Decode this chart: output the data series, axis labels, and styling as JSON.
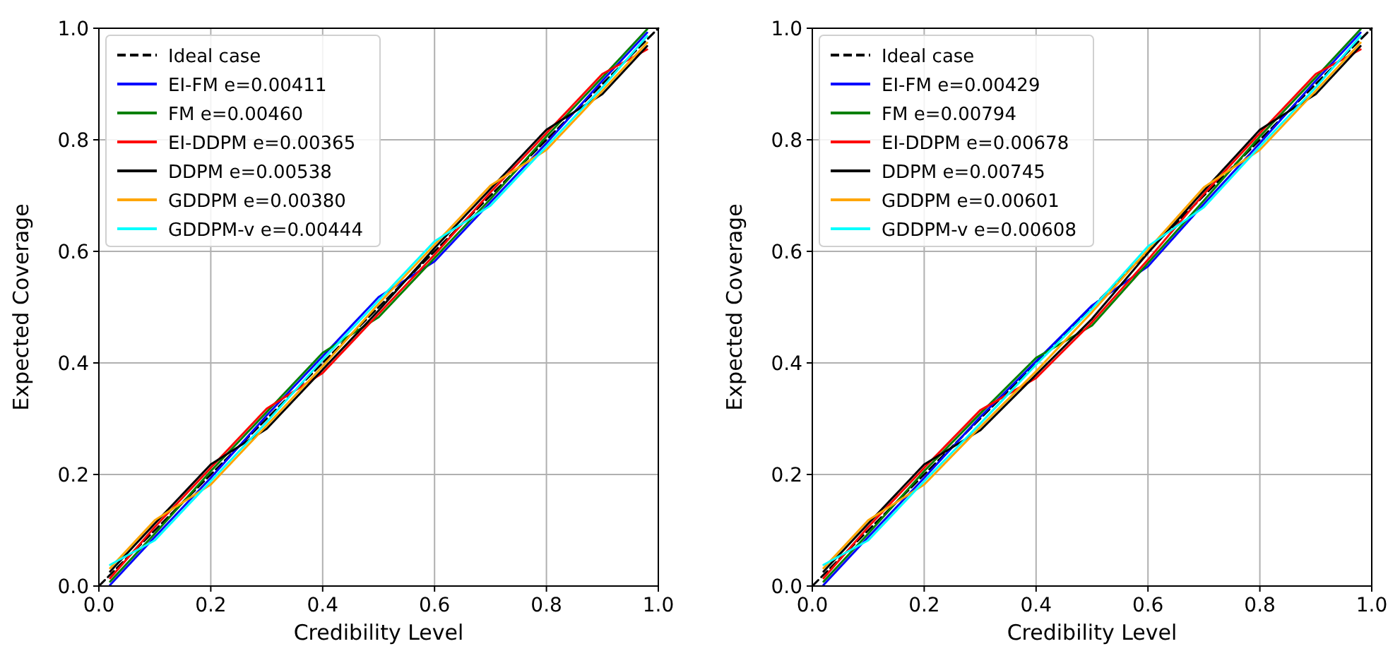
{
  "chart_data": [
    {
      "type": "line",
      "xlabel": "Credibility Level",
      "ylabel": "Expected Coverage",
      "xlim": [
        0,
        1
      ],
      "ylim": [
        0,
        1
      ],
      "xticks": [
        {
          "value": 0,
          "label": "0.0"
        },
        {
          "value": 0.2,
          "label": "0.2"
        },
        {
          "value": 0.4,
          "label": "0.4"
        },
        {
          "value": 0.6,
          "label": "0.6"
        },
        {
          "value": 0.8,
          "label": "0.8"
        },
        {
          "value": 1,
          "label": "1.0"
        }
      ],
      "yticks": [
        {
          "value": 0,
          "label": "0.0"
        },
        {
          "value": 0.2,
          "label": "0.2"
        },
        {
          "value": 0.4,
          "label": "0.4"
        },
        {
          "value": 0.6,
          "label": "0.6"
        },
        {
          "value": 0.8,
          "label": "0.8"
        },
        {
          "value": 1,
          "label": "1.0"
        }
      ],
      "grid": true,
      "legend": "top left",
      "x": [
        0,
        0.1,
        0.2,
        0.3,
        0.4,
        0.5,
        0.6,
        0.7,
        0.8,
        0.9,
        1
      ],
      "series": [
        {
          "name": "Ideal case",
          "color": "#000000",
          "line_style": "dashed",
          "values": [
            0,
            0.1,
            0.2,
            0.3,
            0.4,
            0.5,
            0.6,
            0.7,
            0.8,
            0.9,
            1
          ]
        },
        {
          "name": "EI-FM e=0.00411",
          "color": "#0000ff",
          "x": [
            0.02,
            0.1,
            0.2,
            0.3,
            0.4,
            0.5,
            0.6,
            0.7,
            0.8,
            0.9,
            0.98
          ],
          "values": [
            0.002,
            0.088,
            0.194,
            0.306,
            0.412,
            0.518,
            0.582,
            0.688,
            0.794,
            0.906,
            0.992
          ]
        },
        {
          "name": "FM e=0.00460",
          "color": "#008000",
          "x": [
            0.02,
            0.1,
            0.2,
            0.3,
            0.4,
            0.5,
            0.6,
            0.7,
            0.8,
            0.9,
            0.98
          ],
          "values": [
            0.008,
            0.094,
            0.206,
            0.312,
            0.418,
            0.482,
            0.588,
            0.694,
            0.806,
            0.912,
            0.998
          ]
        },
        {
          "name": "EI-DDPM e=0.00365",
          "color": "#ff0000",
          "x": [
            0.02,
            0.1,
            0.2,
            0.3,
            0.4,
            0.5,
            0.6,
            0.7,
            0.8,
            0.9,
            0.98
          ],
          "values": [
            0.014,
            0.106,
            0.212,
            0.318,
            0.382,
            0.488,
            0.594,
            0.706,
            0.812,
            0.918,
            0.962
          ]
        },
        {
          "name": "DDPM e=0.00538",
          "color": "#000000",
          "x": [
            0.02,
            0.1,
            0.2,
            0.3,
            0.4,
            0.5,
            0.6,
            0.7,
            0.8,
            0.9,
            0.98
          ],
          "values": [
            0.026,
            0.112,
            0.218,
            0.282,
            0.388,
            0.494,
            0.606,
            0.712,
            0.818,
            0.882,
            0.968
          ]
        },
        {
          "name": "GDDPM e=0.00380",
          "color": "#ffa500",
          "x": [
            0.02,
            0.1,
            0.2,
            0.3,
            0.4,
            0.5,
            0.6,
            0.7,
            0.8,
            0.9,
            0.98
          ],
          "values": [
            0.032,
            0.118,
            0.182,
            0.288,
            0.394,
            0.506,
            0.612,
            0.718,
            0.782,
            0.888,
            0.974
          ]
        },
        {
          "name": "GDDPM-v e=0.00444",
          "color": "#00ffff",
          "x": [
            0.02,
            0.1,
            0.2,
            0.3,
            0.4,
            0.5,
            0.6,
            0.7,
            0.8,
            0.9,
            0.98
          ],
          "values": [
            0.038,
            0.082,
            0.188,
            0.294,
            0.406,
            0.512,
            0.618,
            0.682,
            0.788,
            0.894,
            0.986
          ]
        }
      ]
    },
    {
      "type": "line",
      "xlabel": "Credibility Level",
      "ylabel": "Expected Coverage",
      "xlim": [
        0,
        1
      ],
      "ylim": [
        0,
        1
      ],
      "xticks": [
        {
          "value": 0,
          "label": "0.0"
        },
        {
          "value": 0.2,
          "label": "0.2"
        },
        {
          "value": 0.4,
          "label": "0.4"
        },
        {
          "value": 0.6,
          "label": "0.6"
        },
        {
          "value": 0.8,
          "label": "0.8"
        },
        {
          "value": 1,
          "label": "1.0"
        }
      ],
      "yticks": [
        {
          "value": 0,
          "label": "0.0"
        },
        {
          "value": 0.2,
          "label": "0.2"
        },
        {
          "value": 0.4,
          "label": "0.4"
        },
        {
          "value": 0.6,
          "label": "0.6"
        },
        {
          "value": 0.8,
          "label": "0.8"
        },
        {
          "value": 1,
          "label": "1.0"
        }
      ],
      "grid": true,
      "legend": "top left",
      "x": [
        0,
        0.1,
        0.2,
        0.3,
        0.4,
        0.5,
        0.6,
        0.7,
        0.8,
        0.9,
        1
      ],
      "series": [
        {
          "name": "Ideal case",
          "color": "#000000",
          "line_style": "dashed",
          "values": [
            0,
            0.1,
            0.2,
            0.3,
            0.4,
            0.5,
            0.6,
            0.7,
            0.8,
            0.9,
            1
          ]
        },
        {
          "name": "EI-FM e=0.00429",
          "color": "#0000ff",
          "x": [
            0.02,
            0.1,
            0.2,
            0.3,
            0.4,
            0.5,
            0.6,
            0.7,
            0.8,
            0.9,
            0.98
          ],
          "values": [
            0.002,
            0.088,
            0.194,
            0.303,
            0.403,
            0.503,
            0.573,
            0.685,
            0.794,
            0.906,
            0.992
          ]
        },
        {
          "name": "FM e=0.00794",
          "color": "#008000",
          "x": [
            0.02,
            0.1,
            0.2,
            0.3,
            0.4,
            0.5,
            0.6,
            0.7,
            0.8,
            0.9,
            0.98
          ],
          "values": [
            0.008,
            0.094,
            0.206,
            0.309,
            0.409,
            0.467,
            0.579,
            0.691,
            0.806,
            0.912,
            0.998
          ]
        },
        {
          "name": "EI-DDPM e=0.00678",
          "color": "#ff0000",
          "x": [
            0.02,
            0.1,
            0.2,
            0.3,
            0.4,
            0.5,
            0.6,
            0.7,
            0.8,
            0.9,
            0.98
          ],
          "values": [
            0.014,
            0.106,
            0.212,
            0.315,
            0.373,
            0.473,
            0.585,
            0.703,
            0.812,
            0.918,
            0.962
          ]
        },
        {
          "name": "DDPM e=0.00745",
          "color": "#000000",
          "x": [
            0.02,
            0.1,
            0.2,
            0.3,
            0.4,
            0.5,
            0.6,
            0.7,
            0.8,
            0.9,
            0.98
          ],
          "values": [
            0.026,
            0.112,
            0.218,
            0.279,
            0.379,
            0.479,
            0.597,
            0.709,
            0.818,
            0.882,
            0.968
          ]
        },
        {
          "name": "GDDPM e=0.00601",
          "color": "#ffa500",
          "x": [
            0.02,
            0.1,
            0.2,
            0.3,
            0.4,
            0.5,
            0.6,
            0.7,
            0.8,
            0.9,
            0.98
          ],
          "values": [
            0.032,
            0.118,
            0.182,
            0.285,
            0.385,
            0.491,
            0.603,
            0.715,
            0.782,
            0.888,
            0.974
          ]
        },
        {
          "name": "GDDPM-v e=0.00608",
          "color": "#00ffff",
          "x": [
            0.02,
            0.1,
            0.2,
            0.3,
            0.4,
            0.5,
            0.6,
            0.7,
            0.8,
            0.9,
            0.98
          ],
          "values": [
            0.038,
            0.082,
            0.188,
            0.291,
            0.397,
            0.497,
            0.609,
            0.679,
            0.788,
            0.894,
            0.986
          ]
        }
      ]
    }
  ]
}
